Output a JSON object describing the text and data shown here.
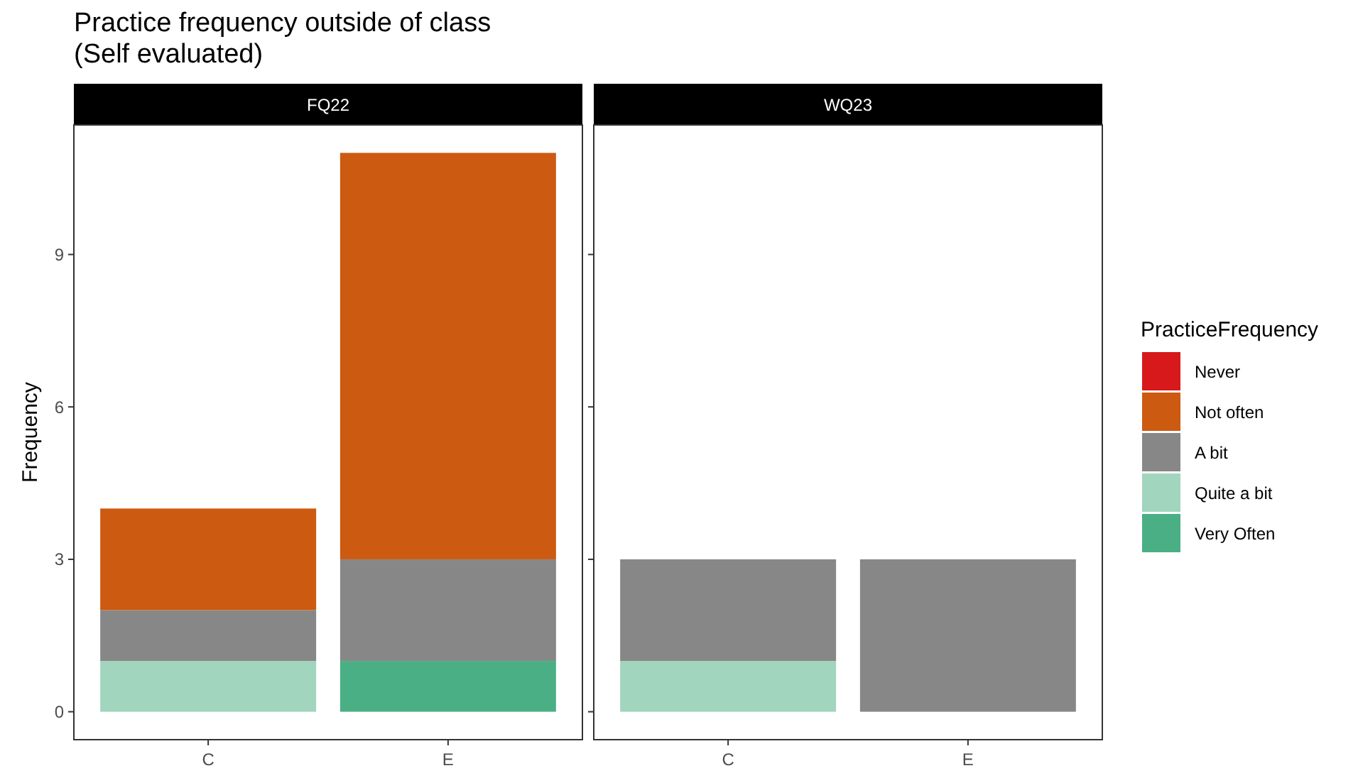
{
  "chart_data": [
    {
      "type": "bar",
      "title": "Practice frequency outside of class\n(Self evaluated)",
      "subtitle": "FQ22",
      "ylabel": "Frequency",
      "categories": [
        "C",
        "E"
      ],
      "stacked": true,
      "ylim": [
        -0.55,
        11.55
      ],
      "yticks": [
        0,
        3,
        6,
        9
      ],
      "legend": false,
      "series": [
        {
          "color": "#4aaf84",
          "values": [
            0,
            1
          ]
        },
        {
          "color": "#a1d5bd",
          "values": [
            1,
            0
          ]
        },
        {
          "color": "#878787",
          "values": [
            1,
            2
          ]
        },
        {
          "color": "#cc5a10",
          "values": [
            2,
            8
          ]
        },
        {
          "color": "#d7191c",
          "values": [
            0,
            0
          ]
        }
      ]
    },
    {
      "type": "bar",
      "subtitle": "WQ23",
      "categories": [
        "C",
        "E"
      ],
      "stacked": true,
      "ylim": [
        -0.55,
        11.55
      ],
      "yticks": [
        0,
        3,
        6,
        9
      ],
      "tick_labels": "x",
      "legend": "right",
      "legend_title": "PracticeFrequency",
      "series": [
        {
          "name": "Very Often",
          "color": "#4aaf84",
          "values": [
            0,
            0
          ]
        },
        {
          "name": "Quite a bit",
          "color": "#a1d5bd",
          "values": [
            1,
            0
          ]
        },
        {
          "name": "A bit",
          "color": "#878787",
          "values": [
            2,
            3
          ]
        },
        {
          "name": "Not often",
          "color": "#cc5a10",
          "values": [
            0,
            0
          ]
        },
        {
          "name": "Never",
          "color": "#d7191c",
          "values": [
            0,
            0
          ]
        }
      ]
    }
  ]
}
